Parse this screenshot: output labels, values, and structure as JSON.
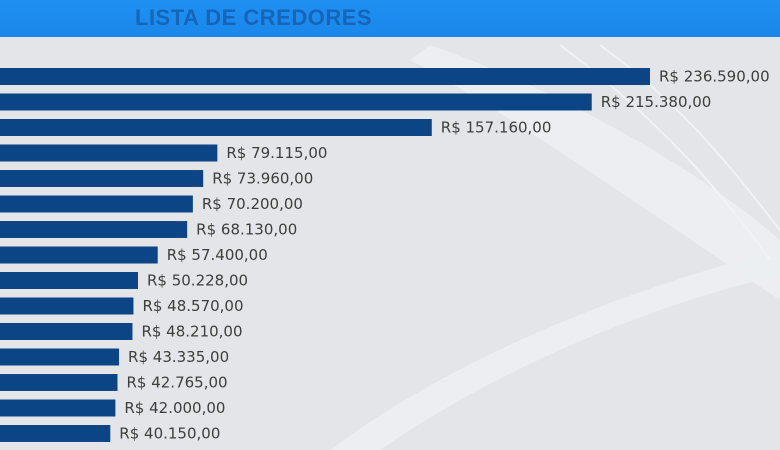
{
  "header": {
    "title": "LISTA DE CREDORES"
  },
  "colors": {
    "header": "#1f90f2",
    "bar": "#0c4585",
    "label": "#3e3e3e",
    "background": "#e3e5e9"
  },
  "chart_data": {
    "type": "bar",
    "orientation": "horizontal",
    "title": "LISTA DE CREDORES",
    "xlabel": "",
    "ylabel": "",
    "values": [
      236590,
      215380,
      157160,
      79115,
      73960,
      70200,
      68130,
      57400,
      50228,
      48570,
      48210,
      43335,
      42765,
      42000,
      40150
    ],
    "labels": [
      "R$ 236.590,00",
      "R$ 215.380,00",
      "R$ 157.160,00",
      "R$ 79.115,00",
      "R$ 73.960,00",
      "R$ 70.200,00",
      "R$ 68.130,00",
      "R$ 57.400,00",
      "R$ 50.228,00",
      "R$ 48.570,00",
      "R$ 48.210,00",
      "R$ 43.335,00",
      "R$ 42.765,00",
      "R$ 42.000,00",
      "R$ 40.150,00"
    ],
    "xlim": [
      0,
      236590
    ],
    "grid": false,
    "legend": "none"
  }
}
